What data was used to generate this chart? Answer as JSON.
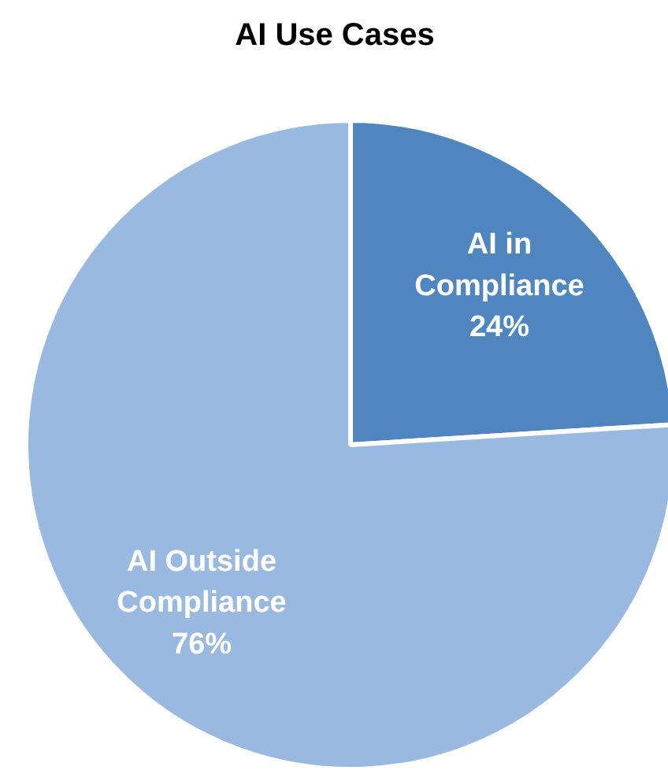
{
  "chart_data": {
    "type": "pie",
    "title": "AI Use Cases",
    "categories": [
      "AI in Compliance",
      "AI Outside Compliance"
    ],
    "values": [
      24,
      76
    ],
    "colors": [
      "#4f86c0",
      "#9ab9e0"
    ],
    "value_labels": [
      "24%",
      "76%"
    ]
  }
}
